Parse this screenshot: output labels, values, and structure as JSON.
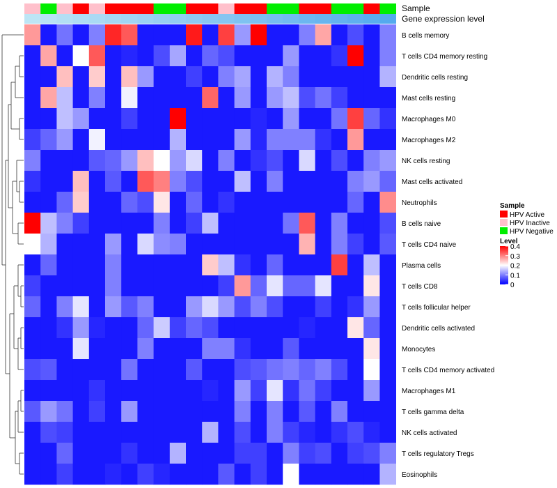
{
  "chart_data": {
    "type": "heatmap",
    "title": "",
    "column_annotations": {
      "sample_label": "Sample",
      "gene_label": "Gene expression level",
      "sample": [
        "HPV Inactive",
        "HPV Negative",
        "HPV Inactive",
        "HPV Active",
        "HPV Inactive",
        "HPV Active",
        "HPV Active",
        "HPV Active",
        "HPV Negative",
        "HPV Negative",
        "HPV Active",
        "HPV Active",
        "HPV Inactive",
        "HPV Active",
        "HPV Active",
        "HPV Negative",
        "HPV Negative",
        "HPV Active",
        "HPV Active",
        "HPV Negative",
        "HPV Negative",
        "HPV Active",
        "HPV Negative"
      ],
      "gene_level": [
        0.02,
        0.07,
        0.11,
        0.16,
        0.2,
        0.25,
        0.29,
        0.33,
        0.38,
        0.42,
        0.47,
        0.51,
        0.55,
        0.6,
        0.64,
        0.69,
        0.73,
        0.78,
        0.82,
        0.86,
        0.91,
        0.95,
        1.0
      ]
    },
    "rows": [
      "B cells memory",
      "T cells CD4 memory resting",
      "Dendritic cells resting",
      "Mast cells resting",
      "Macrophages M0",
      "Macrophages M2",
      "NK cells resting",
      "Mast cells activated",
      "Neutrophils",
      "B cells naive",
      "T cells CD4 naive",
      "Plasma cells",
      "T cells CD8",
      "T cells follicular helper",
      "Dendritic cells activated",
      "Monocytes",
      "T cells CD4 memory activated",
      "Macrophages M1",
      "T cells gamma delta",
      "NK cells activated",
      "T cells regulatory  Tregs",
      "Eosinophils"
    ],
    "values": [
      [
        0.28,
        0.02,
        0.09,
        0.02,
        0.1,
        0.37,
        0.33,
        0.02,
        0.02,
        0.02,
        0.38,
        0.02,
        0.35,
        0.12,
        0.4,
        0.02,
        0.02,
        0.1,
        0.27,
        0.02,
        0.06,
        0.02,
        0.1
      ],
      [
        0.02,
        0.27,
        0.02,
        0.2,
        0.33,
        0.02,
        0.03,
        0.02,
        0.06,
        0.13,
        0.02,
        0.08,
        0.06,
        0.02,
        0.02,
        0.02,
        0.12,
        0.02,
        0.02,
        0.04,
        0.4,
        0.02,
        0.1
      ],
      [
        0.02,
        0.02,
        0.25,
        0.02,
        0.24,
        0.02,
        0.25,
        0.12,
        0.02,
        0.02,
        0.05,
        0.02,
        0.1,
        0.13,
        0.02,
        0.14,
        0.1,
        0.02,
        0.02,
        0.02,
        0.02,
        0.02,
        0.14
      ],
      [
        0.02,
        0.27,
        0.15,
        0.02,
        0.1,
        0.02,
        0.19,
        0.02,
        0.02,
        0.02,
        0.02,
        0.32,
        0.02,
        0.12,
        0.02,
        0.12,
        0.15,
        0.06,
        0.09,
        0.05,
        0.02,
        0.02,
        0.02
      ],
      [
        0.02,
        0.02,
        0.15,
        0.12,
        0.02,
        0.02,
        0.05,
        0.02,
        0.02,
        0.4,
        0.02,
        0.02,
        0.02,
        0.02,
        0.03,
        0.02,
        0.12,
        0.02,
        0.02,
        0.09,
        0.35,
        0.08,
        0.04
      ],
      [
        0.05,
        0.08,
        0.12,
        0.02,
        0.19,
        0.02,
        0.02,
        0.02,
        0.02,
        0.14,
        0.02,
        0.02,
        0.02,
        0.12,
        0.03,
        0.1,
        0.1,
        0.1,
        0.04,
        0.02,
        0.28,
        0.02,
        0.02
      ],
      [
        0.1,
        0.02,
        0.02,
        0.02,
        0.07,
        0.08,
        0.12,
        0.25,
        0.2,
        0.12,
        0.17,
        0.02,
        0.1,
        0.02,
        0.04,
        0.06,
        0.02,
        0.17,
        0.02,
        0.06,
        0.02,
        0.1,
        0.12
      ],
      [
        0.04,
        0.02,
        0.02,
        0.25,
        0.02,
        0.07,
        0.02,
        0.33,
        0.3,
        0.1,
        0.06,
        0.02,
        0.02,
        0.15,
        0.02,
        0.1,
        0.02,
        0.02,
        0.02,
        0.02,
        0.1,
        0.12,
        0.08
      ],
      [
        0.02,
        0.02,
        0.08,
        0.24,
        0.02,
        0.02,
        0.08,
        0.06,
        0.22,
        0.02,
        0.08,
        0.02,
        0.04,
        0.02,
        0.02,
        0.02,
        0.02,
        0.02,
        0.02,
        0.02,
        0.08,
        0.02,
        0.29
      ],
      [
        0.4,
        0.15,
        0.1,
        0.05,
        0.02,
        0.02,
        0.02,
        0.02,
        0.1,
        0.02,
        0.05,
        0.15,
        0.02,
        0.02,
        0.02,
        0.02,
        0.09,
        0.33,
        0.02,
        0.1,
        0.02,
        0.02,
        0.06
      ],
      [
        0.2,
        0.14,
        0.02,
        0.02,
        0.02,
        0.12,
        0.02,
        0.17,
        0.11,
        0.1,
        0.02,
        0.02,
        0.02,
        0.02,
        0.02,
        0.02,
        0.02,
        0.26,
        0.02,
        0.1,
        0.05,
        0.02,
        0.07
      ],
      [
        0.02,
        0.08,
        0.02,
        0.02,
        0.02,
        0.1,
        0.02,
        0.02,
        0.02,
        0.02,
        0.02,
        0.24,
        0.15,
        0.04,
        0.02,
        0.08,
        0.02,
        0.02,
        0.02,
        0.35,
        0.02,
        0.15,
        0.02
      ],
      [
        0.05,
        0.02,
        0.02,
        0.02,
        0.02,
        0.1,
        0.02,
        0.02,
        0.02,
        0.02,
        0.02,
        0.02,
        0.05,
        0.28,
        0.08,
        0.18,
        0.08,
        0.08,
        0.18,
        0.02,
        0.02,
        0.22,
        0.02
      ],
      [
        0.08,
        0.02,
        0.1,
        0.18,
        0.02,
        0.12,
        0.07,
        0.1,
        0.02,
        0.02,
        0.12,
        0.17,
        0.12,
        0.06,
        0.1,
        0.06,
        0.02,
        0.02,
        0.05,
        0.02,
        0.04,
        0.12,
        0.02
      ],
      [
        0.02,
        0.02,
        0.04,
        0.12,
        0.03,
        0.02,
        0.02,
        0.08,
        0.16,
        0.05,
        0.08,
        0.06,
        0.02,
        0.02,
        0.02,
        0.02,
        0.02,
        0.03,
        0.02,
        0.02,
        0.22,
        0.08,
        0.02
      ],
      [
        0.02,
        0.02,
        0.02,
        0.18,
        0.02,
        0.02,
        0.02,
        0.1,
        0.02,
        0.02,
        0.02,
        0.1,
        0.1,
        0.04,
        0.02,
        0.02,
        0.07,
        0.02,
        0.02,
        0.02,
        0.02,
        0.22,
        0.02
      ],
      [
        0.06,
        0.07,
        0.02,
        0.02,
        0.02,
        0.02,
        0.09,
        0.02,
        0.02,
        0.02,
        0.07,
        0.02,
        0.02,
        0.06,
        0.07,
        0.09,
        0.1,
        0.08,
        0.1,
        0.06,
        0.02,
        0.2,
        0.02
      ],
      [
        0.02,
        0.02,
        0.02,
        0.02,
        0.04,
        0.02,
        0.02,
        0.02,
        0.02,
        0.02,
        0.02,
        0.03,
        0.02,
        0.12,
        0.05,
        0.18,
        0.04,
        0.09,
        0.05,
        0.02,
        0.02,
        0.12,
        0.02
      ],
      [
        0.07,
        0.12,
        0.09,
        0.02,
        0.05,
        0.02,
        0.12,
        0.02,
        0.02,
        0.02,
        0.02,
        0.02,
        0.02,
        0.1,
        0.02,
        0.1,
        0.02,
        0.07,
        0.02,
        0.1,
        0.02,
        0.02,
        0.02
      ],
      [
        0.02,
        0.06,
        0.05,
        0.02,
        0.02,
        0.02,
        0.02,
        0.02,
        0.02,
        0.02,
        0.02,
        0.14,
        0.02,
        0.06,
        0.02,
        0.1,
        0.05,
        0.03,
        0.02,
        0.04,
        0.06,
        0.03,
        0.02
      ],
      [
        0.02,
        0.02,
        0.08,
        0.02,
        0.02,
        0.02,
        0.04,
        0.02,
        0.02,
        0.14,
        0.02,
        0.02,
        0.02,
        0.05,
        0.05,
        0.02,
        0.1,
        0.05,
        0.06,
        0.02,
        0.05,
        0.06,
        0.1
      ],
      [
        0.02,
        0.02,
        0.05,
        0.02,
        0.02,
        0.03,
        0.02,
        0.05,
        0.03,
        0.02,
        0.02,
        0.02,
        0.07,
        0.02,
        0.05,
        0.02,
        0.2,
        0.02,
        0.02,
        0.02,
        0.02,
        0.02,
        0.14
      ]
    ],
    "color_scale": {
      "min": 0,
      "max": 0.4,
      "low": "#0000ff",
      "mid": "#ffffff",
      "high": "#ff0000"
    },
    "legend": {
      "sample_title": "Sample",
      "sample_entries": [
        {
          "label": "HPV Active",
          "color": "#ff0000"
        },
        {
          "label": "HPV Inactive",
          "color": "#ffc0cb"
        },
        {
          "label": "HPV Negative",
          "color": "#00ee00"
        }
      ],
      "level_title": "Level",
      "level_ticks": [
        0.4,
        0.3,
        0.2,
        0.1,
        0
      ],
      "level_tick_labels": [
        "0.4",
        "0.3",
        "0.2",
        "0.1",
        "0"
      ]
    },
    "gene_level_colors": {
      "low": "#bfe6f5",
      "high": "#55aaee"
    },
    "dendrogram": "rows-left",
    "legend_position": "right"
  }
}
